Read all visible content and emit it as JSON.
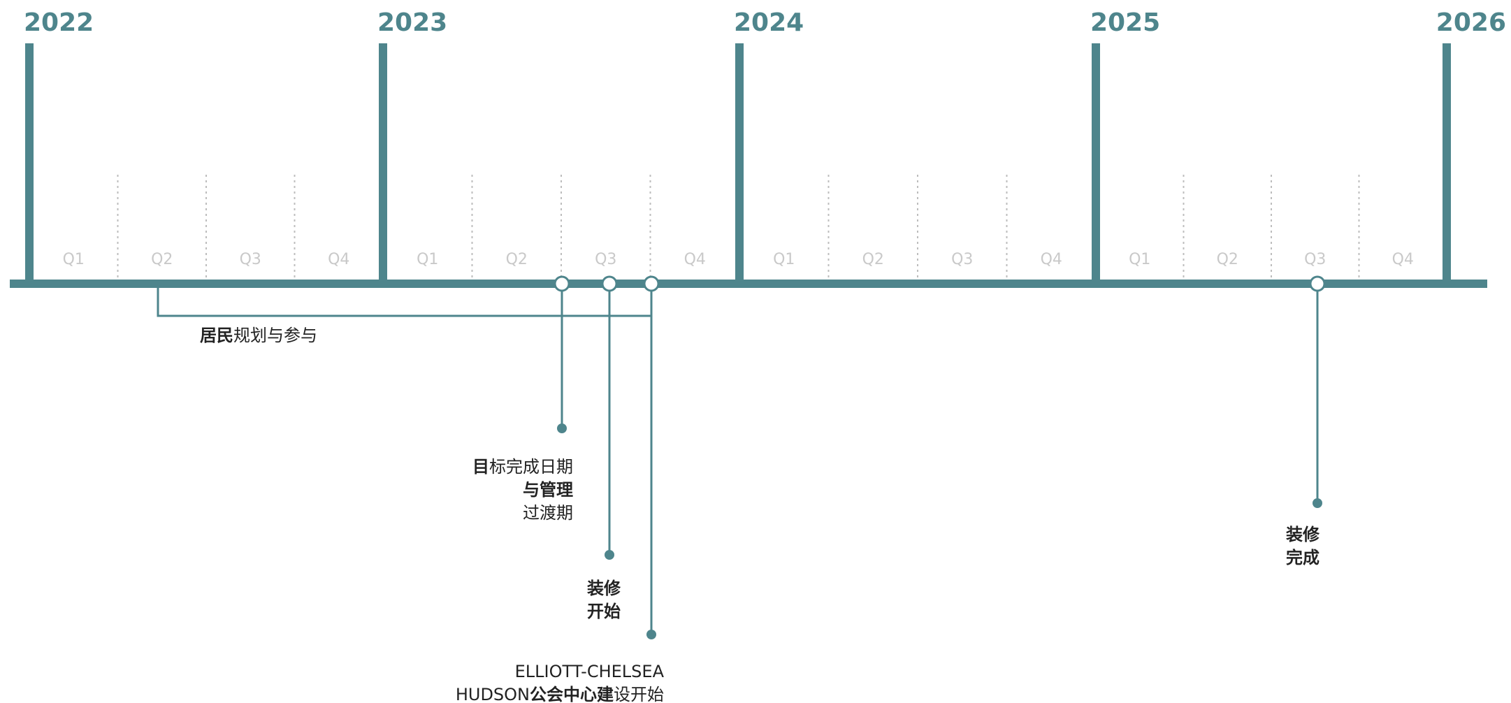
{
  "timeline": {
    "years": [
      "2022",
      "2023",
      "2024",
      "2025",
      "2026"
    ],
    "quarters": [
      "Q1",
      "Q2",
      "Q3",
      "Q4"
    ],
    "colors": {
      "teal": "#4e858c",
      "quarter_text": "#c9c9c9",
      "divider": "#bdbdbd",
      "event_text": "#222222"
    }
  },
  "events": [
    {
      "id": "resident-planning",
      "date": "2022-Q2 to 2023-Q3",
      "lines": [
        [
          {
            "t": "居民",
            "bold": true
          },
          {
            "t": "规划与参与",
            "bold": false
          }
        ]
      ]
    },
    {
      "id": "target-completion-date",
      "date": "2023-Q3",
      "lines": [
        [
          {
            "t": "目",
            "bold": true
          },
          {
            "t": "标完成日期",
            "bold": false
          }
        ],
        [
          {
            "t": "与管理",
            "bold": true
          }
        ],
        [
          {
            "t": "过渡期",
            "bold": false
          }
        ]
      ]
    },
    {
      "id": "renovation-start",
      "date": "2023-Q3",
      "lines": [
        [
          {
            "t": "装修",
            "bold": true
          }
        ],
        [
          {
            "t": "开始",
            "bold": true
          }
        ]
      ]
    },
    {
      "id": "community-center-construction",
      "date": "2023-Q4",
      "lines": [
        [
          {
            "t": "ELLIOTT-CHELSEA",
            "bold": false
          }
        ],
        [
          {
            "t": "HUDSON",
            "bold": false
          },
          {
            "t": "公会中心建",
            "bold": true
          },
          {
            "t": "设开始",
            "bold": false
          }
        ]
      ]
    },
    {
      "id": "renovation-complete",
      "date": "2025-Q3",
      "lines": [
        [
          {
            "t": "装修",
            "bold": true
          }
        ],
        [
          {
            "t": "完成",
            "bold": true
          }
        ]
      ]
    }
  ]
}
